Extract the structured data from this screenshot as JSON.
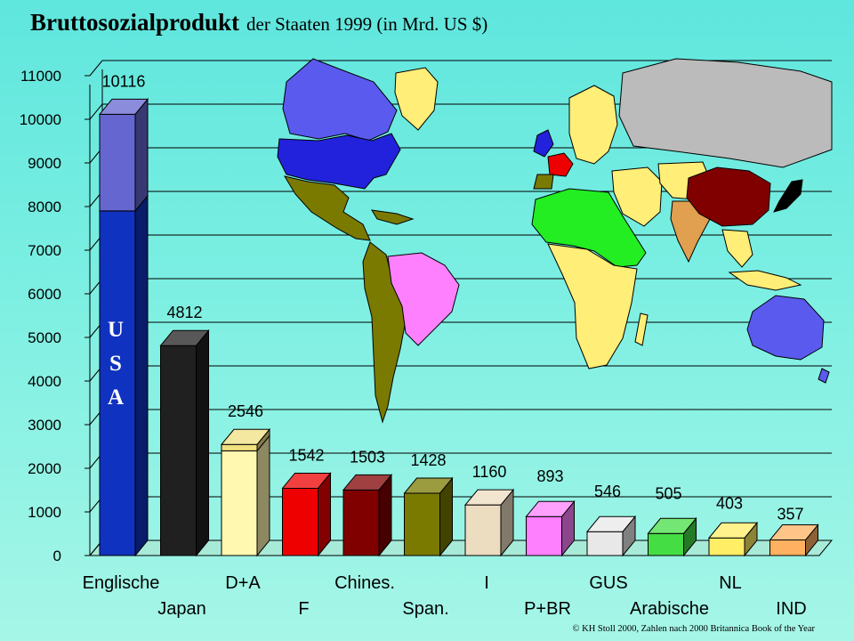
{
  "header": {
    "title": "Bruttosozialprodukt",
    "subtitle": "der Staaten 1999 (in Mrd. US $)"
  },
  "footer": {
    "credit": "© KH Stoll 2000, Zahlen nach 2000 Britannica Book of the Year"
  },
  "chart_data": {
    "type": "bar",
    "title": "Bruttosozialprodukt der Staaten 1999 (in Mrd. US $)",
    "xlabel": "",
    "ylabel": "",
    "ylim": [
      0,
      11000
    ],
    "yticks": [
      0,
      1000,
      2000,
      3000,
      4000,
      5000,
      6000,
      7000,
      8000,
      9000,
      10000,
      11000
    ],
    "grid": true,
    "legend": "none",
    "bar_style": "3d",
    "categories": [
      "Englische",
      "Japan",
      "D+A",
      "F",
      "Chines.",
      "Span.",
      "I",
      "P+BR",
      "GUS",
      "Arabische",
      "NL",
      "IND"
    ],
    "values": [
      10116,
      4812,
      2546,
      1542,
      1503,
      1428,
      1160,
      893,
      546,
      505,
      403,
      357
    ],
    "value_labels": [
      "10116",
      "4812",
      "2546",
      "1542",
      "1503",
      "1428",
      "1160",
      "893",
      "546",
      "505",
      "403",
      "357"
    ],
    "colors": [
      "#1032c0",
      "#202020",
      "#fff8b0",
      "#ee0000",
      "#800000",
      "#7a7a00",
      "#ecdcc0",
      "#ff80ff",
      "#e8e8e8",
      "#44dd44",
      "#ffee66",
      "#ffb060"
    ],
    "stacked_segments": [
      {
        "category": "Englische",
        "value": 7900,
        "color": "#1032c0"
      },
      {
        "category": "Englische",
        "value": 2216,
        "color": "#6666d0"
      },
      {
        "category": "D+A",
        "value": 2400,
        "color": "#fff8b0"
      },
      {
        "category": "D+A",
        "value": 146,
        "color": "#f0e080"
      }
    ],
    "annotations": [
      {
        "category": "Englische",
        "text": "U"
      },
      {
        "category": "Englische",
        "text": "S"
      },
      {
        "category": "Englische",
        "text": "A"
      }
    ]
  }
}
